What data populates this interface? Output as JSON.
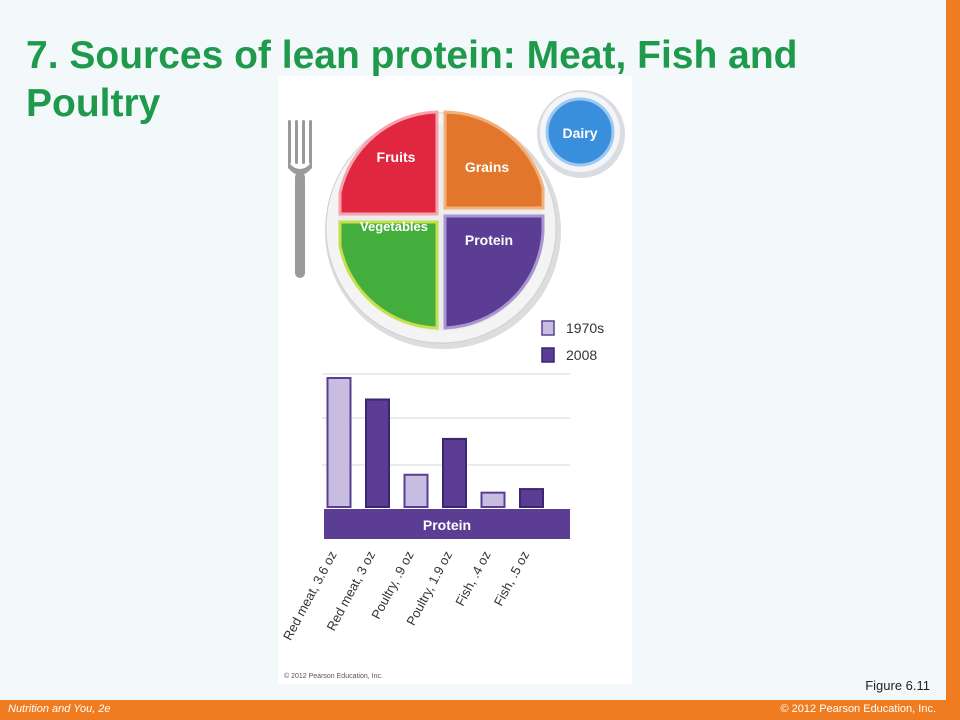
{
  "slide": {
    "title": "7. Sources of lean protein: Meat, Fish and Poultry",
    "figure_caption": "Figure 6.11",
    "footer_left": "Nutrition and You, 2e",
    "footer_right": "© 2012 Pearson Education, Inc.",
    "copyright_in_figure": "© 2012 Pearson Education, Inc."
  },
  "plate": {
    "sections": [
      "Fruits",
      "Grains",
      "Vegetables",
      "Protein"
    ],
    "dairy_label": "Dairy",
    "colors": {
      "fruits": "#e0273f",
      "grains": "#e2762b",
      "vegetables": "#3fae3a",
      "protein": "#5b3e93",
      "dairy": "#3a8fdc"
    }
  },
  "chart_data": {
    "type": "bar",
    "categories": [
      "Red meat, 3.6 oz",
      "Red meat, 3 oz",
      "Poultry, .9 oz",
      "Poultry, 1.9 oz",
      "Fish, .4 oz",
      "Fish, .5 oz"
    ],
    "values": [
      3.6,
      3.0,
      0.9,
      1.9,
      0.4,
      0.5
    ],
    "series_labels": [
      "1970s",
      "2008",
      "1970s",
      "2008",
      "1970s",
      "2008"
    ],
    "legend": [
      {
        "name": "1970s",
        "color": "#c7bde0"
      },
      {
        "name": "2008",
        "color": "#5b3e93"
      }
    ],
    "band_label": "Protein",
    "ylim": [
      0,
      3.6
    ],
    "grid": true,
    "legend_position": "top-right"
  }
}
